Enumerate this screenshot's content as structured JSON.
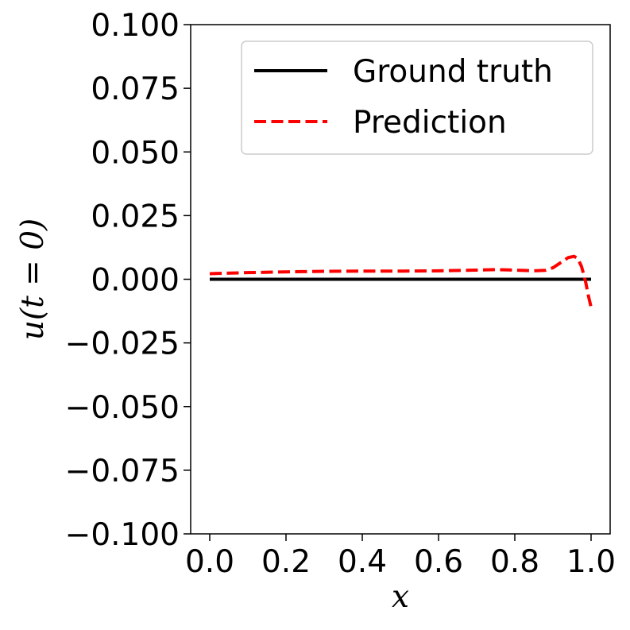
{
  "chart_data": {
    "type": "line",
    "title": "",
    "xlabel": "x",
    "ylabel": "u(t = 0)",
    "xlim": [
      -0.05,
      1.05
    ],
    "ylim": [
      -0.1,
      0.1
    ],
    "xticks": [
      "0.0",
      "0.2",
      "0.4",
      "0.6",
      "0.8",
      "1.0"
    ],
    "xtick_values": [
      0.0,
      0.2,
      0.4,
      0.6,
      0.8,
      1.0
    ],
    "yticks": [
      "0.100",
      "0.075",
      "0.050",
      "0.025",
      "0.000",
      "−0.025",
      "−0.050",
      "−0.075",
      "−0.100"
    ],
    "ytick_values": [
      0.1,
      0.075,
      0.05,
      0.025,
      0.0,
      -0.025,
      -0.05,
      -0.075,
      -0.1
    ],
    "grid": false,
    "legend_position": "top-right",
    "series": [
      {
        "name": "Ground truth",
        "color": "#000000",
        "style": "solid",
        "x": [
          0.0,
          0.25,
          0.5,
          0.75,
          1.0
        ],
        "y": [
          0.0,
          0.0,
          0.0,
          0.0,
          0.0
        ]
      },
      {
        "name": "Prediction",
        "color": "#ff0000",
        "style": "dashed",
        "x": [
          0.0,
          0.1,
          0.2,
          0.3,
          0.4,
          0.5,
          0.6,
          0.7,
          0.75,
          0.8,
          0.85,
          0.88,
          0.9,
          0.92,
          0.94,
          0.955,
          0.965,
          0.975,
          0.985,
          0.993,
          1.0
        ],
        "y": [
          0.0022,
          0.0026,
          0.0029,
          0.0031,
          0.0032,
          0.0032,
          0.0033,
          0.0036,
          0.0038,
          0.0036,
          0.0033,
          0.0035,
          0.0045,
          0.0065,
          0.0085,
          0.009,
          0.0082,
          0.005,
          -0.0005,
          -0.0065,
          -0.011
        ]
      }
    ]
  }
}
